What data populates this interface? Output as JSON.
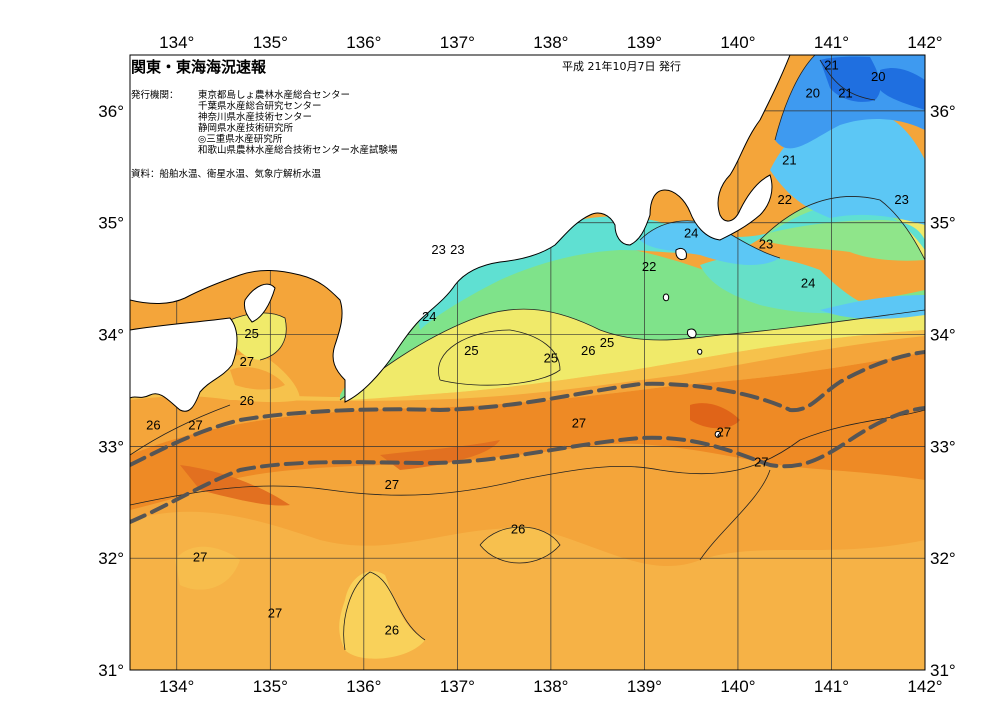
{
  "map": {
    "title": "関東・東海海況速報",
    "date": "平成 21年10月7日 発行",
    "issuer_label": "発行機関：",
    "issuers": [
      "東京都島しょ農林水産総合センター",
      "千葉県水産総合研究センター",
      "神奈川県水産技術センター",
      "静岡県水産技術研究所",
      "◎三重県水産研究所",
      "和歌山県農林水産総合技術センター水産試験場"
    ],
    "source": "資料：船舶水温、衛星水温、気象庁解析水温",
    "lon_labels": [
      "134°",
      "135°",
      "136°",
      "137°",
      "138°",
      "139°",
      "140°",
      "141°",
      "142°"
    ],
    "lat_labels_left": [
      "36°",
      "35°",
      "34°",
      "33°",
      "32°",
      "31°"
    ],
    "lat_labels_right": [
      "36°",
      "35°",
      "34°",
      "33°",
      "32°",
      "31°"
    ],
    "lon_range": [
      133.5,
      142
    ],
    "lat_range": [
      31,
      36.5
    ],
    "contour_labels": [
      {
        "text": "21",
        "lon": 141.0,
        "lat": 36.4
      },
      {
        "text": "20",
        "lon": 141.5,
        "lat": 36.3
      },
      {
        "text": "20",
        "lon": 140.8,
        "lat": 36.15
      },
      {
        "text": "21",
        "lon": 141.15,
        "lat": 36.15
      },
      {
        "text": "21",
        "lon": 140.55,
        "lat": 35.55
      },
      {
        "text": "22",
        "lon": 140.5,
        "lat": 35.2
      },
      {
        "text": "23",
        "lon": 141.75,
        "lat": 35.2
      },
      {
        "text": "24",
        "lon": 139.5,
        "lat": 34.9
      },
      {
        "text": "23",
        "lon": 140.3,
        "lat": 34.8
      },
      {
        "text": "24",
        "lon": 140.75,
        "lat": 34.45
      },
      {
        "text": "22",
        "lon": 139.05,
        "lat": 34.6
      },
      {
        "text": "23",
        "lon": 136.8,
        "lat": 34.75
      },
      {
        "text": "23",
        "lon": 137.0,
        "lat": 34.75
      },
      {
        "text": "24",
        "lon": 136.7,
        "lat": 34.15
      },
      {
        "text": "25",
        "lon": 137.15,
        "lat": 33.85
      },
      {
        "text": "25",
        "lon": 138.0,
        "lat": 33.78
      },
      {
        "text": "26",
        "lon": 138.4,
        "lat": 33.85
      },
      {
        "text": "25",
        "lon": 138.6,
        "lat": 33.92
      },
      {
        "text": "25",
        "lon": 134.8,
        "lat": 34.0
      },
      {
        "text": "27",
        "lon": 134.75,
        "lat": 33.75
      },
      {
        "text": "26",
        "lon": 134.75,
        "lat": 33.4
      },
      {
        "text": "27",
        "lon": 134.2,
        "lat": 33.18
      },
      {
        "text": "26",
        "lon": 133.75,
        "lat": 33.18
      },
      {
        "text": "27",
        "lon": 138.3,
        "lat": 33.2
      },
      {
        "text": "27",
        "lon": 139.85,
        "lat": 33.12
      },
      {
        "text": "27",
        "lon": 140.25,
        "lat": 32.85
      },
      {
        "text": "27",
        "lon": 136.3,
        "lat": 32.65
      },
      {
        "text": "26",
        "lon": 137.65,
        "lat": 32.25
      },
      {
        "text": "27",
        "lon": 134.25,
        "lat": 32.0
      },
      {
        "text": "27",
        "lon": 135.05,
        "lat": 31.5
      },
      {
        "text": "26",
        "lon": 136.3,
        "lat": 31.35
      }
    ],
    "colors": {
      "t20": "#1f6fe0",
      "t21": "#3e9af0",
      "t22": "#5cc7f5",
      "t23": "#5fe0d2",
      "t24": "#7fe38a",
      "t25": "#f0ea6a",
      "t26": "#f6c24c",
      "t27": "#f4a53a",
      "t28": "#ee8a25",
      "t29": "#e06418",
      "kuroshio": "#555555"
    }
  }
}
